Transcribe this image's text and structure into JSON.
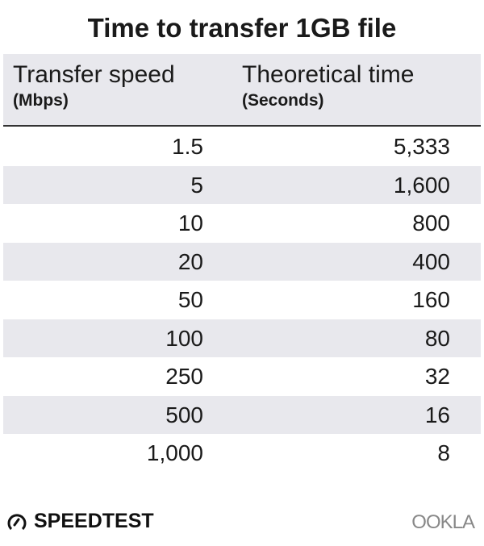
{
  "chart_data": {
    "type": "table",
    "title": "Time to transfer 1GB file",
    "columns": [
      {
        "label": "Transfer speed",
        "unit": "(Mbps)"
      },
      {
        "label": "Theoretical time",
        "unit": "(Seconds)"
      }
    ],
    "rows": [
      [
        "1.5",
        "5,333"
      ],
      [
        "5",
        "1,600"
      ],
      [
        "10",
        "800"
      ],
      [
        "20",
        "400"
      ],
      [
        "50",
        "160"
      ],
      [
        "100",
        "80"
      ],
      [
        "250",
        "32"
      ],
      [
        "500",
        "16"
      ],
      [
        "1,000",
        "8"
      ]
    ]
  },
  "branding": {
    "left": "SPEEDTEST",
    "right": "OOKLA"
  },
  "colors": {
    "header_bg": "#e8e8ed",
    "stripe": "#e8e8ed",
    "text": "#1a1a1a"
  }
}
